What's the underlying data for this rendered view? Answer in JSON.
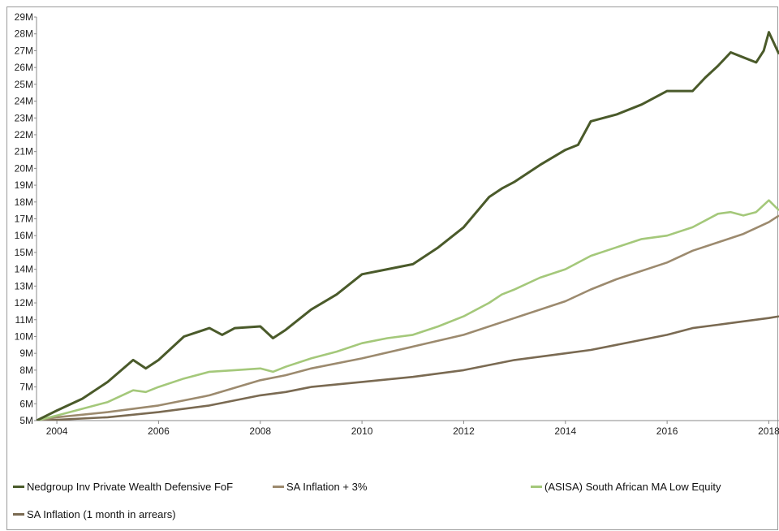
{
  "chart_data": {
    "type": "line",
    "xlabel": "",
    "ylabel": "",
    "xlim": [
      2003.6,
      2018.2
    ],
    "ylim": [
      5,
      29
    ],
    "x_ticks": [
      2004,
      2006,
      2008,
      2010,
      2012,
      2014,
      2016,
      2018
    ],
    "x_tick_labels": [
      "2004",
      "2006",
      "2008",
      "2010",
      "2012",
      "2014",
      "2016",
      "2018"
    ],
    "y_ticks": [
      5,
      6,
      7,
      8,
      9,
      10,
      11,
      12,
      13,
      14,
      15,
      16,
      17,
      18,
      19,
      20,
      21,
      22,
      23,
      24,
      25,
      26,
      27,
      28,
      29
    ],
    "y_tick_labels": [
      "5M",
      "6M",
      "7M",
      "8M",
      "9M",
      "10M",
      "11M",
      "12M",
      "13M",
      "14M",
      "15M",
      "16M",
      "17M",
      "18M",
      "19M",
      "20M",
      "21M",
      "22M",
      "23M",
      "24M",
      "25M",
      "26M",
      "27M",
      "28M",
      "29M"
    ],
    "grid": false,
    "legend_position": "bottom",
    "series": [
      {
        "name": "Nedgroup Inv Private Wealth Defensive FoF",
        "color": "#4a5a2a",
        "x": [
          2003.6,
          2004.0,
          2004.5,
          2005.0,
          2005.5,
          2005.75,
          2006.0,
          2006.5,
          2007.0,
          2007.25,
          2007.5,
          2008.0,
          2008.25,
          2008.5,
          2009.0,
          2009.5,
          2010.0,
          2010.5,
          2011.0,
          2011.5,
          2012.0,
          2012.5,
          2012.75,
          2013.0,
          2013.5,
          2014.0,
          2014.25,
          2014.5,
          2015.0,
          2015.5,
          2016.0,
          2016.5,
          2016.75,
          2017.0,
          2017.25,
          2017.5,
          2017.75,
          2017.9,
          2018.0,
          2018.2
        ],
        "values": [
          5.0,
          5.6,
          6.3,
          7.3,
          8.6,
          8.1,
          8.6,
          10.0,
          10.5,
          10.1,
          10.5,
          10.6,
          9.9,
          10.4,
          11.6,
          12.5,
          13.7,
          14.0,
          14.3,
          15.3,
          16.5,
          18.3,
          18.8,
          19.2,
          20.2,
          21.1,
          21.4,
          22.8,
          23.2,
          23.8,
          24.6,
          24.6,
          25.4,
          26.1,
          26.9,
          26.6,
          26.3,
          27.0,
          28.1,
          26.8
        ]
      },
      {
        "name": "(ASISA) South African MA Low Equity",
        "color": "#a4c87a",
        "x": [
          2003.6,
          2004.0,
          2004.5,
          2005.0,
          2005.5,
          2005.75,
          2006.0,
          2006.5,
          2007.0,
          2007.5,
          2008.0,
          2008.25,
          2008.5,
          2009.0,
          2009.5,
          2010.0,
          2010.5,
          2011.0,
          2011.5,
          2012.0,
          2012.5,
          2012.75,
          2013.0,
          2013.5,
          2014.0,
          2014.5,
          2015.0,
          2015.5,
          2016.0,
          2016.5,
          2017.0,
          2017.25,
          2017.5,
          2017.75,
          2018.0,
          2018.2
        ],
        "values": [
          5.0,
          5.3,
          5.7,
          6.1,
          6.8,
          6.7,
          7.0,
          7.5,
          7.9,
          8.0,
          8.1,
          7.9,
          8.2,
          8.7,
          9.1,
          9.6,
          9.9,
          10.1,
          10.6,
          11.2,
          12.0,
          12.5,
          12.8,
          13.5,
          14.0,
          14.8,
          15.3,
          15.8,
          16.0,
          16.5,
          17.3,
          17.4,
          17.2,
          17.4,
          18.1,
          17.5
        ]
      },
      {
        "name": "SA Inflation + 3%",
        "color": "#9c8a6e",
        "x": [
          2003.6,
          2004.0,
          2005.0,
          2006.0,
          2007.0,
          2008.0,
          2008.5,
          2009.0,
          2010.0,
          2011.0,
          2012.0,
          2013.0,
          2014.0,
          2014.5,
          2015.0,
          2016.0,
          2016.5,
          2017.0,
          2017.5,
          2018.0,
          2018.2
        ],
        "values": [
          5.0,
          5.2,
          5.5,
          5.9,
          6.5,
          7.4,
          7.7,
          8.1,
          8.7,
          9.4,
          10.1,
          11.1,
          12.1,
          12.8,
          13.4,
          14.4,
          15.1,
          15.6,
          16.1,
          16.8,
          17.2
        ]
      },
      {
        "name": "SA Inflation (1 month in arrears)",
        "color": "#7a6a52",
        "x": [
          2003.6,
          2004.0,
          2005.0,
          2006.0,
          2007.0,
          2008.0,
          2008.5,
          2009.0,
          2010.0,
          2011.0,
          2012.0,
          2013.0,
          2014.0,
          2014.5,
          2015.0,
          2016.0,
          2016.5,
          2017.0,
          2017.5,
          2018.0,
          2018.2
        ],
        "values": [
          5.0,
          5.05,
          5.2,
          5.5,
          5.9,
          6.5,
          6.7,
          7.0,
          7.3,
          7.6,
          8.0,
          8.6,
          9.0,
          9.2,
          9.5,
          10.1,
          10.5,
          10.7,
          10.9,
          11.1,
          11.2
        ]
      }
    ],
    "legend": [
      {
        "label": "Nedgroup Inv Private Wealth Defensive FoF",
        "color": "#4a5a2a"
      },
      {
        "label": "SA Inflation + 3%",
        "color": "#9c8a6e"
      },
      {
        "label": "(ASISA) South African MA Low Equity",
        "color": "#a4c87a"
      },
      {
        "label": "SA Inflation (1 month in arrears)",
        "color": "#7a6a52"
      }
    ]
  }
}
